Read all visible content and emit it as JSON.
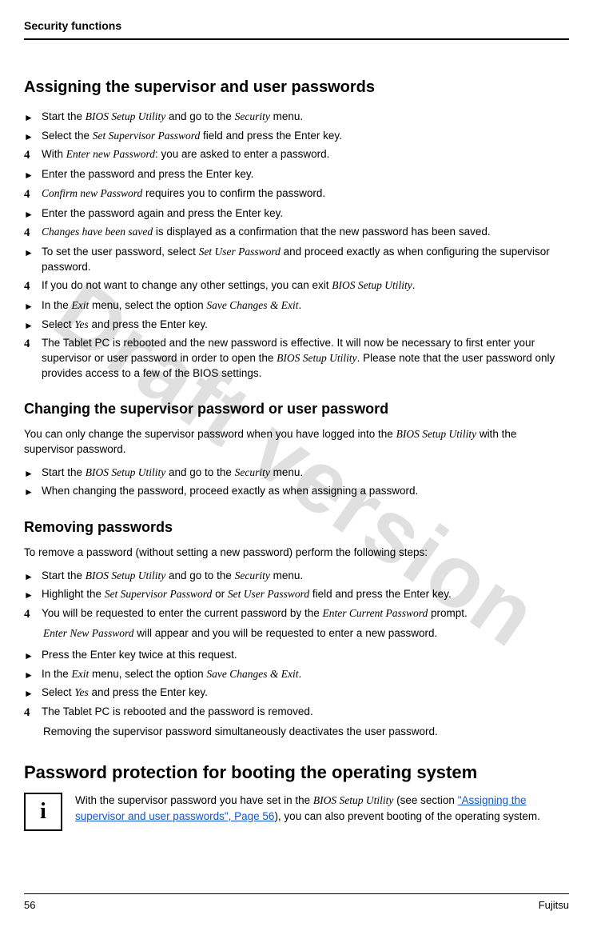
{
  "header": {
    "title": "Security functions"
  },
  "watermark": "Draft version",
  "section1": {
    "heading": "Assigning the supervisor and user passwords",
    "steps": {
      "s0": {
        "pre": "Start the ",
        "it0": "BIOS Setup Utility",
        "mid": " and go to the ",
        "it1": "Security",
        "post": " menu."
      },
      "s1": {
        "pre": "Select the ",
        "it0": "Set Supervisor Password",
        "post": " field and press the Enter key."
      },
      "s2": {
        "pre": "With ",
        "it0": "Enter new Password",
        "post": ": you are asked to enter a password."
      },
      "s3": {
        "pre": "Enter the password and press the Enter key."
      },
      "s4": {
        "it0": "Confirm new Password",
        "post": " requires you to confirm the password."
      },
      "s5": {
        "pre": "Enter the password again and press the Enter key."
      },
      "s6": {
        "it0": "Changes have been saved",
        "post": " is displayed as a confirmation that the new password has been saved."
      },
      "s7": {
        "pre": "To set the user password, select ",
        "it0": "Set User Password",
        "post": " and proceed exactly as when configuring the supervisor password."
      },
      "s8": {
        "pre": "If you do not want to change any other settings, you can exit ",
        "it0": "BIOS Setup Utility",
        "post": "."
      },
      "s9": {
        "pre": "In the ",
        "it0": "Exit",
        "mid": " menu, select the option ",
        "it1": "Save Changes & Exit",
        "post": "."
      },
      "s10": {
        "pre": "Select ",
        "it0": "Yes",
        "post": " and press the Enter key."
      },
      "s11": {
        "pre": "The Tablet PC is rebooted and the new password is effective. It will now be necessary to first enter your supervisor or user password in order to open the ",
        "it0": "BIOS Setup Utility",
        "post": ". Please note that the user password only provides access to a few of the BIOS settings."
      }
    }
  },
  "section2": {
    "heading": "Changing the supervisor password or user password",
    "intro": {
      "pre": "You can only change the supervisor password when you have logged into the ",
      "it0": "BIOS Setup Utility",
      "post": " with the supervisor password."
    },
    "steps": {
      "s0": {
        "pre": "Start the ",
        "it0": "BIOS Setup Utility",
        "mid": " and go to the ",
        "it1": "Security",
        "post": " menu."
      },
      "s1": {
        "pre": "When changing the password, proceed exactly as when assigning a password."
      }
    }
  },
  "section3": {
    "heading": "Removing passwords",
    "intro": "To remove a password (without setting a new password) perform the following steps:",
    "steps": {
      "s0": {
        "pre": "Start the ",
        "it0": "BIOS Setup Utility",
        "mid": " and go to the ",
        "it1": "Security",
        "post": " menu."
      },
      "s1": {
        "pre": "Highlight the ",
        "it0": "Set Supervisor Password",
        "mid": " or ",
        "it1": "Set User Password",
        "post": " field and press the Enter key."
      },
      "s2": {
        "pre": "You will be requested to enter the current password by the ",
        "it0": "Enter Current Password",
        "post": " prompt."
      },
      "s2note": {
        "it0": "Enter New Password",
        "post": " will appear and you will be requested to enter a new password."
      },
      "s3": {
        "pre": "Press the Enter key twice at this request."
      },
      "s4": {
        "pre": "In the ",
        "it0": "Exit",
        "mid": " menu, select the option ",
        "it1": "Save Changes & Exit",
        "post": "."
      },
      "s5": {
        "pre": "Select ",
        "it0": "Yes",
        "post": " and press the Enter key."
      },
      "s6": {
        "pre": "The Tablet PC is rebooted and the password is removed."
      },
      "s6note": "Removing the supervisor password simultaneously deactivates the user password."
    }
  },
  "section4": {
    "heading": "Password protection for booting the operating system",
    "info": {
      "pre": "With the supervisor password you have set in the ",
      "it0": "BIOS Setup Utility",
      "mid": " (see section ",
      "link": "\"Assigning the supervisor and user passwords\", Page 56",
      "post": "), you can also prevent booting of the operating system."
    }
  },
  "footer": {
    "page": "56",
    "brand": "Fujitsu"
  }
}
